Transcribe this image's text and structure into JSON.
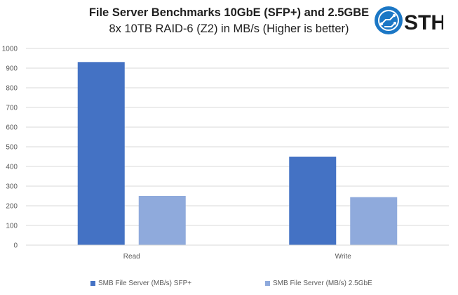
{
  "colors": {
    "series1": "#4472c4",
    "series2": "#8faadc",
    "grid": "#d9d9d9",
    "axis_text": "#595959",
    "logo_blue": "#1b77c5"
  },
  "logo": {
    "text": "STH",
    "icon": "circuit-gear-icon"
  },
  "chart_data": {
    "type": "bar",
    "title": "File Server Benchmarks 10GbE (SFP+) and 2.5GBE",
    "subtitle": "8x 10TB RAID-6 (Z2) in MB/s (Higher is better)",
    "categories": [
      "Read",
      "Write"
    ],
    "series": [
      {
        "name": "SMB File Server (MB/s) SFP+",
        "values": [
          931,
          450
        ]
      },
      {
        "name": "SMB File Server (MB/s) 2.5GbE",
        "values": [
          250,
          244
        ]
      }
    ],
    "ylim": [
      0,
      1000
    ],
    "yticks": [
      "0",
      "100",
      "200",
      "300",
      "400",
      "500",
      "600",
      "700",
      "800",
      "900",
      "1000"
    ],
    "grid": true,
    "legend_position": "bottom"
  }
}
